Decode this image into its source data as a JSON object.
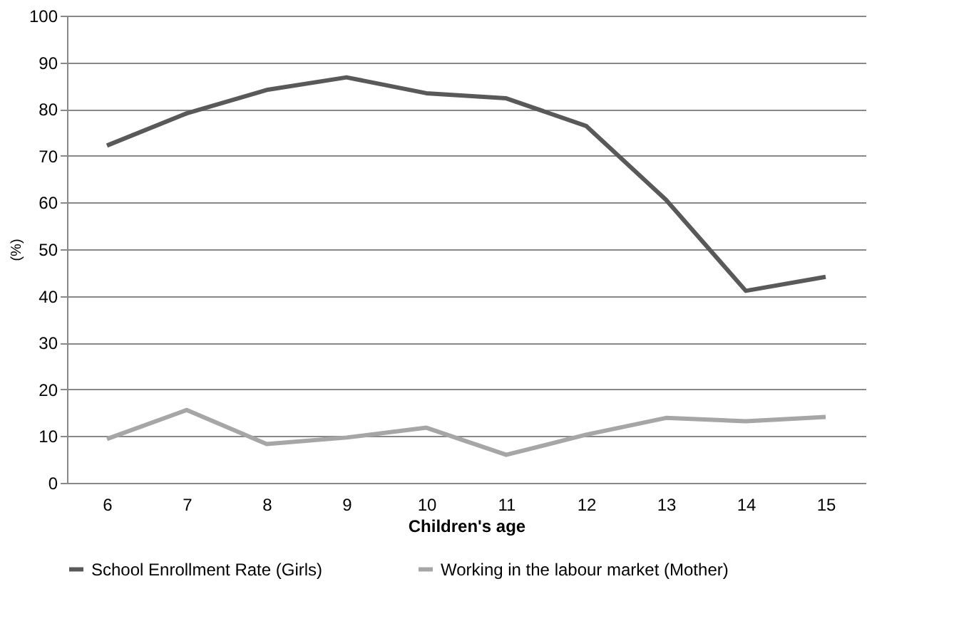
{
  "chart_data": {
    "type": "line",
    "xlabel": "Children's age",
    "ylabel": "(%)",
    "categories": [
      "6",
      "7",
      "8",
      "9",
      "10",
      "11",
      "12",
      "13",
      "14",
      "15"
    ],
    "series": [
      {
        "name": "School Enrollment Rate (Girls)",
        "color": "#595959",
        "values": [
          72.2,
          79.1,
          84.1,
          86.8,
          83.4,
          82.3,
          76.4,
          60.6,
          41.1,
          44.1
        ]
      },
      {
        "name": "Working in the labour market (Mother)",
        "color": "#a6a6a6",
        "values": [
          9.4,
          15.6,
          8.3,
          9.7,
          11.8,
          6.0,
          10.3,
          13.9,
          13.2,
          14.1
        ]
      }
    ],
    "ylim": [
      0,
      100
    ],
    "yticks": [
      0,
      10,
      20,
      30,
      40,
      50,
      60,
      70,
      80,
      90,
      100
    ],
    "grid": "y",
    "legend": "bottom",
    "marker": "none",
    "line_style": "solid"
  }
}
